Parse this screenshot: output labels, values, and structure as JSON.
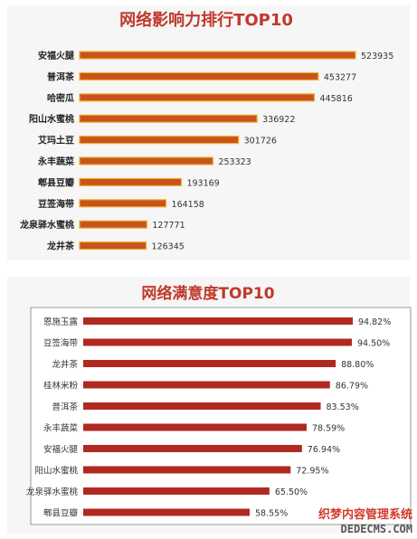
{
  "chart_data": [
    {
      "type": "bar",
      "orientation": "horizontal",
      "title": "网络影响力排行TOP10",
      "categories": [
        "安福火腿",
        "普洱茶",
        "哈密瓜",
        "阳山水蜜桃",
        "艾玛土豆",
        "永丰蔬菜",
        "郫县豆瓣",
        "豆签海带",
        "龙泉驿水蜜桃",
        "龙井茶"
      ],
      "values": [
        523935,
        453277,
        445816,
        336922,
        301726,
        253323,
        193169,
        164158,
        127771,
        126345
      ],
      "value_labels": [
        "523935",
        "453277",
        "445816",
        "336922",
        "301726",
        "253323",
        "193169",
        "164158",
        "127771",
        "126345"
      ],
      "xlim": [
        0,
        523935
      ],
      "colors": {
        "bar": "#c8541c",
        "bar_edge": "#f0b030",
        "title": "#c0392b"
      },
      "grid": false
    },
    {
      "type": "bar",
      "orientation": "horizontal",
      "title": "网络满意度TOP10",
      "categories": [
        "恩施玉露",
        "豆签海带",
        "龙井茶",
        "桂林米粉",
        "普洱茶",
        "永丰蔬菜",
        "安福火腿",
        "阳山水蜜桃",
        "龙泉驿水蜜桃",
        "郫县豆瓣"
      ],
      "values": [
        94.82,
        94.5,
        88.8,
        86.79,
        83.53,
        78.59,
        76.94,
        72.95,
        65.5,
        58.55
      ],
      "value_labels": [
        "94.82%",
        "94.50%",
        "88.80%",
        "86.79%",
        "83.53%",
        "78.59%",
        "76.94%",
        "72.95%",
        "65.50%",
        "58.55%"
      ],
      "xlim": [
        0,
        94.82
      ],
      "colors": {
        "bar": "#b02a22",
        "title": "#c0392b"
      },
      "grid": false
    }
  ],
  "watermark": {
    "cn": "织梦内容管理系统",
    "en": "DEDECMS.COM"
  }
}
